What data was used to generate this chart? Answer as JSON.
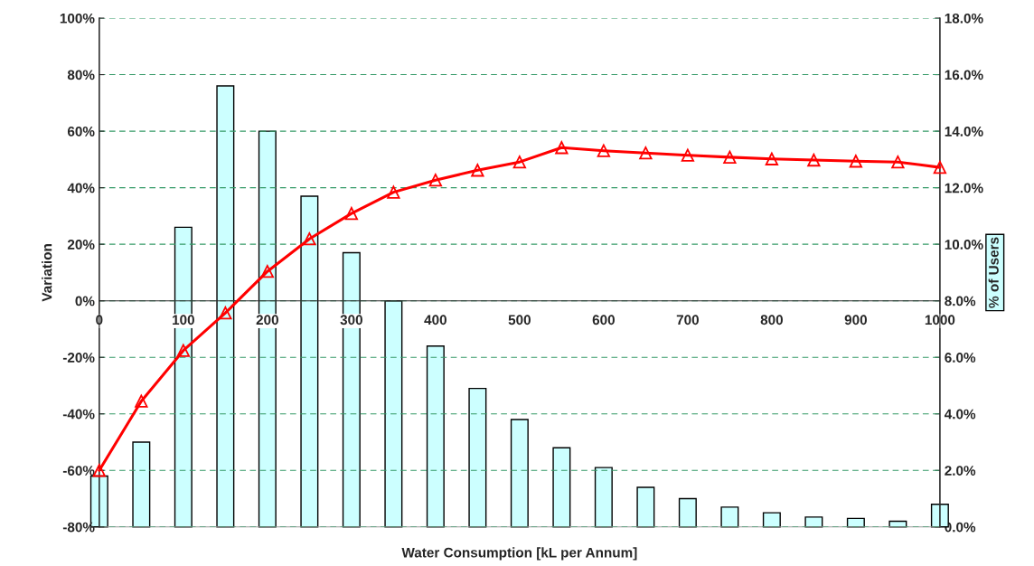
{
  "chart_data": {
    "type": "bar",
    "xlabel": "Water Consumption [kL per Annum]",
    "ylabel": "Variation",
    "y2label": "% of Users",
    "x": [
      0,
      50,
      100,
      150,
      200,
      250,
      300,
      350,
      400,
      450,
      500,
      550,
      600,
      650,
      700,
      750,
      800,
      850,
      900,
      950,
      1000
    ],
    "series": [
      {
        "axis": "y2",
        "color": "#ccffff",
        "values": [
          1.8,
          3.0,
          10.6,
          15.6,
          14.0,
          11.7,
          9.7,
          8.0,
          6.4,
          4.9,
          3.8,
          2.8,
          2.1,
          1.4,
          1.0,
          0.7,
          0.5,
          0.35,
          0.3,
          0.2,
          0.8
        ]
      },
      {
        "type": "line",
        "color": "#ff0000",
        "marker": "triangle",
        "line_style": "solid",
        "values": [
          -60,
          -35.5,
          -17.6,
          -4.3,
          10.4,
          21.9,
          30.9,
          38.4,
          42.7,
          46.2,
          49.1,
          54.2,
          53.1,
          52.3,
          51.5,
          50.8,
          50.2,
          49.8,
          49.4,
          49.1,
          47.2
        ]
      }
    ],
    "xlim": [
      0,
      1000
    ],
    "xticks": [
      0,
      100,
      200,
      300,
      400,
      500,
      600,
      700,
      800,
      900,
      1000
    ],
    "ylim": [
      -80,
      100
    ],
    "yticks": [
      {
        "value": -80,
        "label": "-80%"
      },
      {
        "value": -60,
        "label": "-60%"
      },
      {
        "value": -40,
        "label": "-40%"
      },
      {
        "value": -20,
        "label": "-20%"
      },
      {
        "value": 0,
        "label": "0%"
      },
      {
        "value": 20,
        "label": "20%"
      },
      {
        "value": 40,
        "label": "40%"
      },
      {
        "value": 60,
        "label": "60%"
      },
      {
        "value": 80,
        "label": "80%"
      },
      {
        "value": 100,
        "label": "100%"
      }
    ],
    "y2lim": [
      0,
      18
    ],
    "y2ticks": [
      {
        "value": 0,
        "label": "0.0%"
      },
      {
        "value": 2,
        "label": "2.0%"
      },
      {
        "value": 4,
        "label": "4.0%"
      },
      {
        "value": 6,
        "label": "6.0%"
      },
      {
        "value": 8,
        "label": "8.0%"
      },
      {
        "value": 10,
        "label": "10.0%"
      },
      {
        "value": 12,
        "label": "12.0%"
      },
      {
        "value": 14,
        "label": "14.0%"
      },
      {
        "value": 16,
        "label": "16.0%"
      },
      {
        "value": 18,
        "label": "18.0%"
      }
    ],
    "grid": "y",
    "legend": false
  }
}
